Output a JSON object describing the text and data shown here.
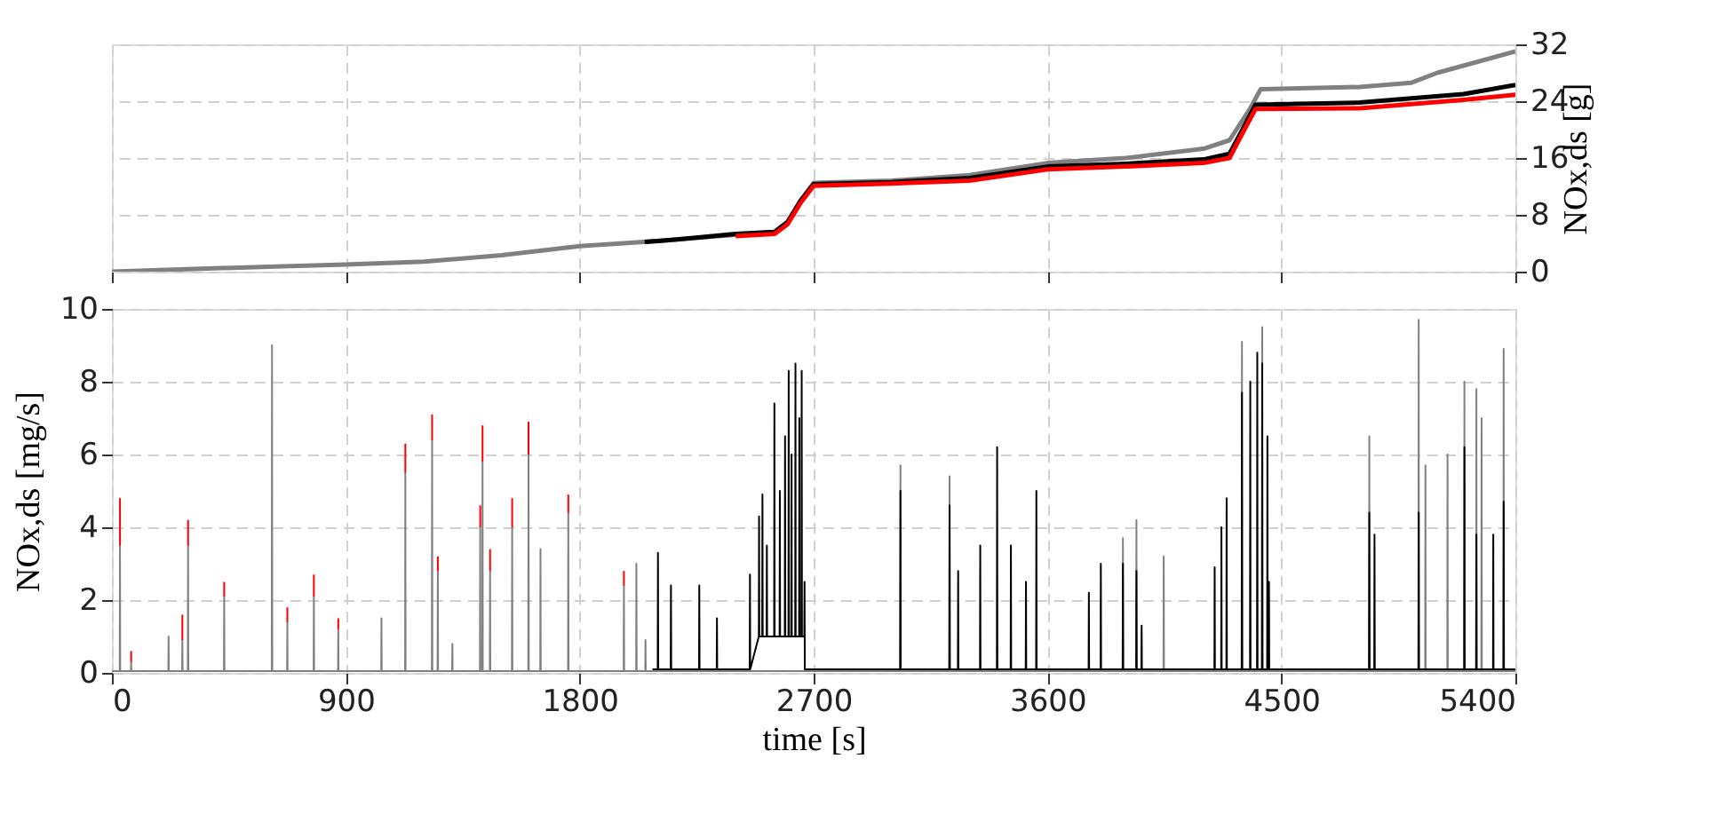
{
  "chart_data": [
    {
      "type": "line",
      "ylabel": "NOx,ds [g]",
      "xlim": [
        0,
        5400
      ],
      "xticks": [
        0,
        900,
        1800,
        2700,
        3600,
        4500,
        5400
      ],
      "ylim": [
        0,
        32
      ],
      "yticks": [
        0,
        8,
        16,
        24,
        32
      ],
      "grid": true,
      "tick_labels": "y",
      "line_style": "solid",
      "marker": "none",
      "series": [
        {
          "color": "#808080",
          "x": [
            0,
            600,
            900,
            1200,
            1500,
            1800,
            2100,
            2400,
            2550,
            2600,
            2650,
            2700,
            3000,
            3300,
            3600,
            3900,
            4200,
            4300,
            4380,
            4420,
            4800,
            5000,
            5100,
            5400
          ],
          "values": [
            0,
            0.7,
            1.0,
            1.4,
            2.3,
            3.6,
            4.3,
            5.2,
            5.6,
            7,
            10,
            12.5,
            12.8,
            13.6,
            15.3,
            16,
            17.3,
            18.5,
            23,
            25.7,
            26,
            26.6,
            28,
            31
          ]
        },
        {
          "color": "#000000",
          "x": [
            2050,
            2100,
            2400,
            2550,
            2600,
            2650,
            2700,
            3000,
            3300,
            3600,
            3900,
            4200,
            4300,
            4350,
            4400,
            4800,
            5000,
            5200,
            5400
          ],
          "values": [
            4.2,
            4.3,
            5.3,
            5.6,
            7,
            10,
            12.3,
            12.6,
            13.2,
            14.8,
            15.2,
            15.8,
            16.6,
            20,
            23.5,
            23.8,
            24.4,
            25,
            26.3
          ]
        },
        {
          "color": "#ff0000",
          "x": [
            2400,
            2550,
            2600,
            2650,
            2700,
            3000,
            3300,
            3600,
            3900,
            4200,
            4300,
            4350,
            4400,
            4800,
            5000,
            5200,
            5400
          ],
          "values": [
            5.0,
            5.3,
            6.7,
            9.7,
            12.1,
            12.4,
            12.8,
            14.4,
            14.8,
            15.3,
            16.0,
            19.5,
            22.9,
            23.0,
            23.6,
            24.2,
            24.9
          ]
        }
      ]
    },
    {
      "type": "line",
      "xlabel": "time [s]",
      "ylabel": "NOx,ds [mg/s]",
      "xlim": [
        0,
        5400
      ],
      "xticks": [
        0,
        900,
        1800,
        2700,
        3600,
        4500,
        5400
      ],
      "ylim": [
        0,
        10
      ],
      "yticks": [
        0,
        2,
        4,
        6,
        8,
        10
      ],
      "grid": true,
      "line_style": "solid",
      "marker": "none",
      "series": [
        {
          "color": "#808080",
          "x": [
            0,
            30,
            31,
            32,
            73,
            74,
            75,
            217,
            218,
            219,
            270,
            271,
            272,
            292,
            293,
            294,
            431,
            432,
            433,
            615,
            616,
            617,
            674,
            675,
            676,
            776,
            777,
            778,
            870,
            871,
            872,
            1036,
            1037,
            1038,
            1128,
            1129,
            1130,
            1231,
            1232,
            1233,
            1253,
            1254,
            1255,
            1309,
            1310,
            1311,
            1416,
            1417,
            1418,
            1425,
            1426,
            1427,
            1454,
            1455,
            1456,
            1539,
            1540,
            1541,
            1602,
            1603,
            1604,
            1648,
            1649,
            1650,
            1755,
            1756,
            1757,
            1969,
            1970,
            1971,
            2017,
            2018,
            2019,
            2052,
            2053,
            2054,
            3033,
            3034,
            3035,
            3222,
            3223,
            3224,
            3889,
            3890,
            3891,
            3941,
            3942,
            3943,
            4046,
            4047,
            4048,
            4347,
            4348,
            4349,
            4425,
            4426,
            4427,
            4837,
            4838,
            4839,
            5027,
            5028,
            5029,
            5053,
            5054,
            5055,
            5138,
            5139,
            5140,
            5203,
            5204,
            5205,
            5249,
            5250,
            5251,
            5269,
            5270,
            5271,
            5354,
            5355,
            5356,
            5400
          ],
          "values": [
            0.05,
            0.05,
            3.5,
            0.05,
            0.05,
            0.3,
            0.05,
            0.05,
            1.0,
            0.05,
            0.05,
            0.9,
            0.05,
            0.05,
            3.5,
            0.05,
            0.05,
            2.1,
            0.05,
            0.05,
            9.0,
            0.05,
            0.05,
            1.4,
            0.05,
            0.05,
            2.1,
            0.05,
            0.05,
            1.2,
            0.05,
            0.05,
            1.5,
            0.05,
            0.05,
            5.5,
            0.05,
            0.05,
            6.4,
            0.05,
            0.05,
            2.8,
            0.05,
            0.05,
            0.8,
            0.05,
            0.05,
            4.0,
            0.05,
            0.05,
            5.8,
            0.05,
            0.05,
            2.8,
            0.05,
            0.05,
            4.0,
            0.05,
            0.05,
            6.0,
            0.05,
            0.05,
            3.4,
            0.05,
            0.05,
            4.4,
            0.05,
            0.05,
            2.4,
            0.05,
            0.05,
            3.0,
            0.05,
            0.05,
            0.9,
            0.05,
            0.05,
            5.7,
            0.05,
            0.05,
            5.4,
            0.05,
            0.05,
            3.7,
            0.05,
            0.05,
            4.2,
            0.05,
            0.05,
            3.2,
            0.05,
            0.05,
            9.1,
            0.05,
            0.05,
            9.5,
            0.05,
            0.05,
            6.5,
            0.05,
            0.05,
            9.7,
            0.05,
            0.05,
            5.7,
            0.05,
            0.05,
            6.0,
            0.05,
            0.05,
            8.0,
            0.05,
            0.05,
            7.8,
            0.05,
            0.05,
            7.0,
            0.05,
            0.05,
            8.9,
            0.05,
            0.05
          ]
        },
        {
          "color": "#ff0000",
          "x": [
            31,
            31,
            null,
            74,
            74,
            null,
            271,
            271,
            null,
            293,
            293,
            null,
            432,
            432,
            null,
            675,
            675,
            null,
            777,
            777,
            null,
            871,
            871,
            null,
            1129,
            1129,
            null,
            1232,
            1232,
            null,
            1254,
            1254,
            null,
            1417,
            1417,
            null,
            1426,
            1426,
            null,
            1455,
            1455,
            null,
            1540,
            1540,
            null,
            1603,
            1603,
            null,
            1756,
            1756,
            null,
            1970,
            1970
          ],
          "values": [
            3.5,
            4.8,
            null,
            0.3,
            0.6,
            null,
            0.9,
            1.6,
            null,
            3.5,
            4.2,
            null,
            2.1,
            2.5,
            null,
            1.4,
            1.8,
            null,
            2.1,
            2.7,
            null,
            1.2,
            1.5,
            null,
            5.5,
            6.3,
            null,
            6.4,
            7.1,
            null,
            2.8,
            3.2,
            null,
            4.0,
            4.6,
            null,
            5.8,
            6.8,
            null,
            2.8,
            3.4,
            null,
            4.0,
            4.8,
            null,
            6.0,
            6.9,
            null,
            4.4,
            4.9,
            null,
            2.4,
            2.8
          ]
        },
        {
          "color": "#000000",
          "x": [
            2080,
            2100,
            2101,
            2102,
            2150,
            2151,
            2152,
            2259,
            2260,
            2261,
            2327,
            2328,
            2329,
            2454,
            2455,
            2456,
            2489,
            2490,
            2491,
            2502,
            2503,
            2504,
            2519,
            2520,
            2521,
            2548,
            2549,
            2550,
            2569,
            2570,
            2571,
            2589,
            2590,
            2591,
            2603,
            2604,
            2605,
            2614,
            2615,
            2616,
            2629,
            2630,
            2631,
            2644,
            2645,
            2646,
            2653,
            2654,
            2655,
            2664,
            2665,
            2666,
            3033,
            3034,
            3035,
            3222,
            3223,
            3224,
            3255,
            3256,
            3257,
            3340,
            3341,
            3342,
            3405,
            3406,
            3407,
            3458,
            3459,
            3460,
            3516,
            3517,
            3518,
            3556,
            3557,
            3558,
            3758,
            3759,
            3760,
            3804,
            3805,
            3806,
            3889,
            3890,
            3891,
            3941,
            3942,
            3943,
            3961,
            3962,
            3963,
            4242,
            4243,
            4244,
            4268,
            4269,
            4270,
            4288,
            4289,
            4290,
            4347,
            4348,
            4349,
            4379,
            4380,
            4381,
            4406,
            4407,
            4408,
            4425,
            4426,
            4427,
            4445,
            4446,
            4447,
            4451,
            4452,
            4453,
            4837,
            4838,
            4839,
            4857,
            4858,
            4859,
            5027,
            5028,
            5029,
            5203,
            5204,
            5205,
            5249,
            5250,
            5251,
            5314,
            5315,
            5316,
            5354,
            5355,
            5356,
            5400
          ],
          "values": [
            0.1,
            0.1,
            3.3,
            0.1,
            0.1,
            2.4,
            0.1,
            0.1,
            2.4,
            0.1,
            0.1,
            1.5,
            0.1,
            0.1,
            2.7,
            0.1,
            1.0,
            4.3,
            1.0,
            1.0,
            4.9,
            1.0,
            1.0,
            3.5,
            1.0,
            1.0,
            7.4,
            1.0,
            1.0,
            5.0,
            1.0,
            1.0,
            6.5,
            1.0,
            1.0,
            8.3,
            1.0,
            1.0,
            6.0,
            1.0,
            1.0,
            8.5,
            1.0,
            1.0,
            7.0,
            1.0,
            1.0,
            8.3,
            1.0,
            1.0,
            2.5,
            0.1,
            0.1,
            5.0,
            0.1,
            0.1,
            4.6,
            0.1,
            0.1,
            2.8,
            0.1,
            0.1,
            3.5,
            0.1,
            0.1,
            6.2,
            0.1,
            0.1,
            3.5,
            0.1,
            0.1,
            2.5,
            0.1,
            0.1,
            5.0,
            0.1,
            0.1,
            2.2,
            0.1,
            0.1,
            3.0,
            0.1,
            0.1,
            3.0,
            0.1,
            0.1,
            2.8,
            0.1,
            0.1,
            1.3,
            0.1,
            0.1,
            2.9,
            0.1,
            0.1,
            4.0,
            0.1,
            0.1,
            4.8,
            0.1,
            0.1,
            7.7,
            0.1,
            0.1,
            8.0,
            0.1,
            0.1,
            8.8,
            0.1,
            0.1,
            8.5,
            0.1,
            0.1,
            6.5,
            0.1,
            0.1,
            2.5,
            0.1,
            0.1,
            4.4,
            0.1,
            0.1,
            3.8,
            0.1,
            0.1,
            4.4,
            0.1,
            0.1,
            6.2,
            0.1,
            0.1,
            3.8,
            0.1,
            0.1,
            3.8,
            0.1,
            0.1,
            4.7,
            0.1,
            0.1
          ]
        }
      ]
    }
  ]
}
